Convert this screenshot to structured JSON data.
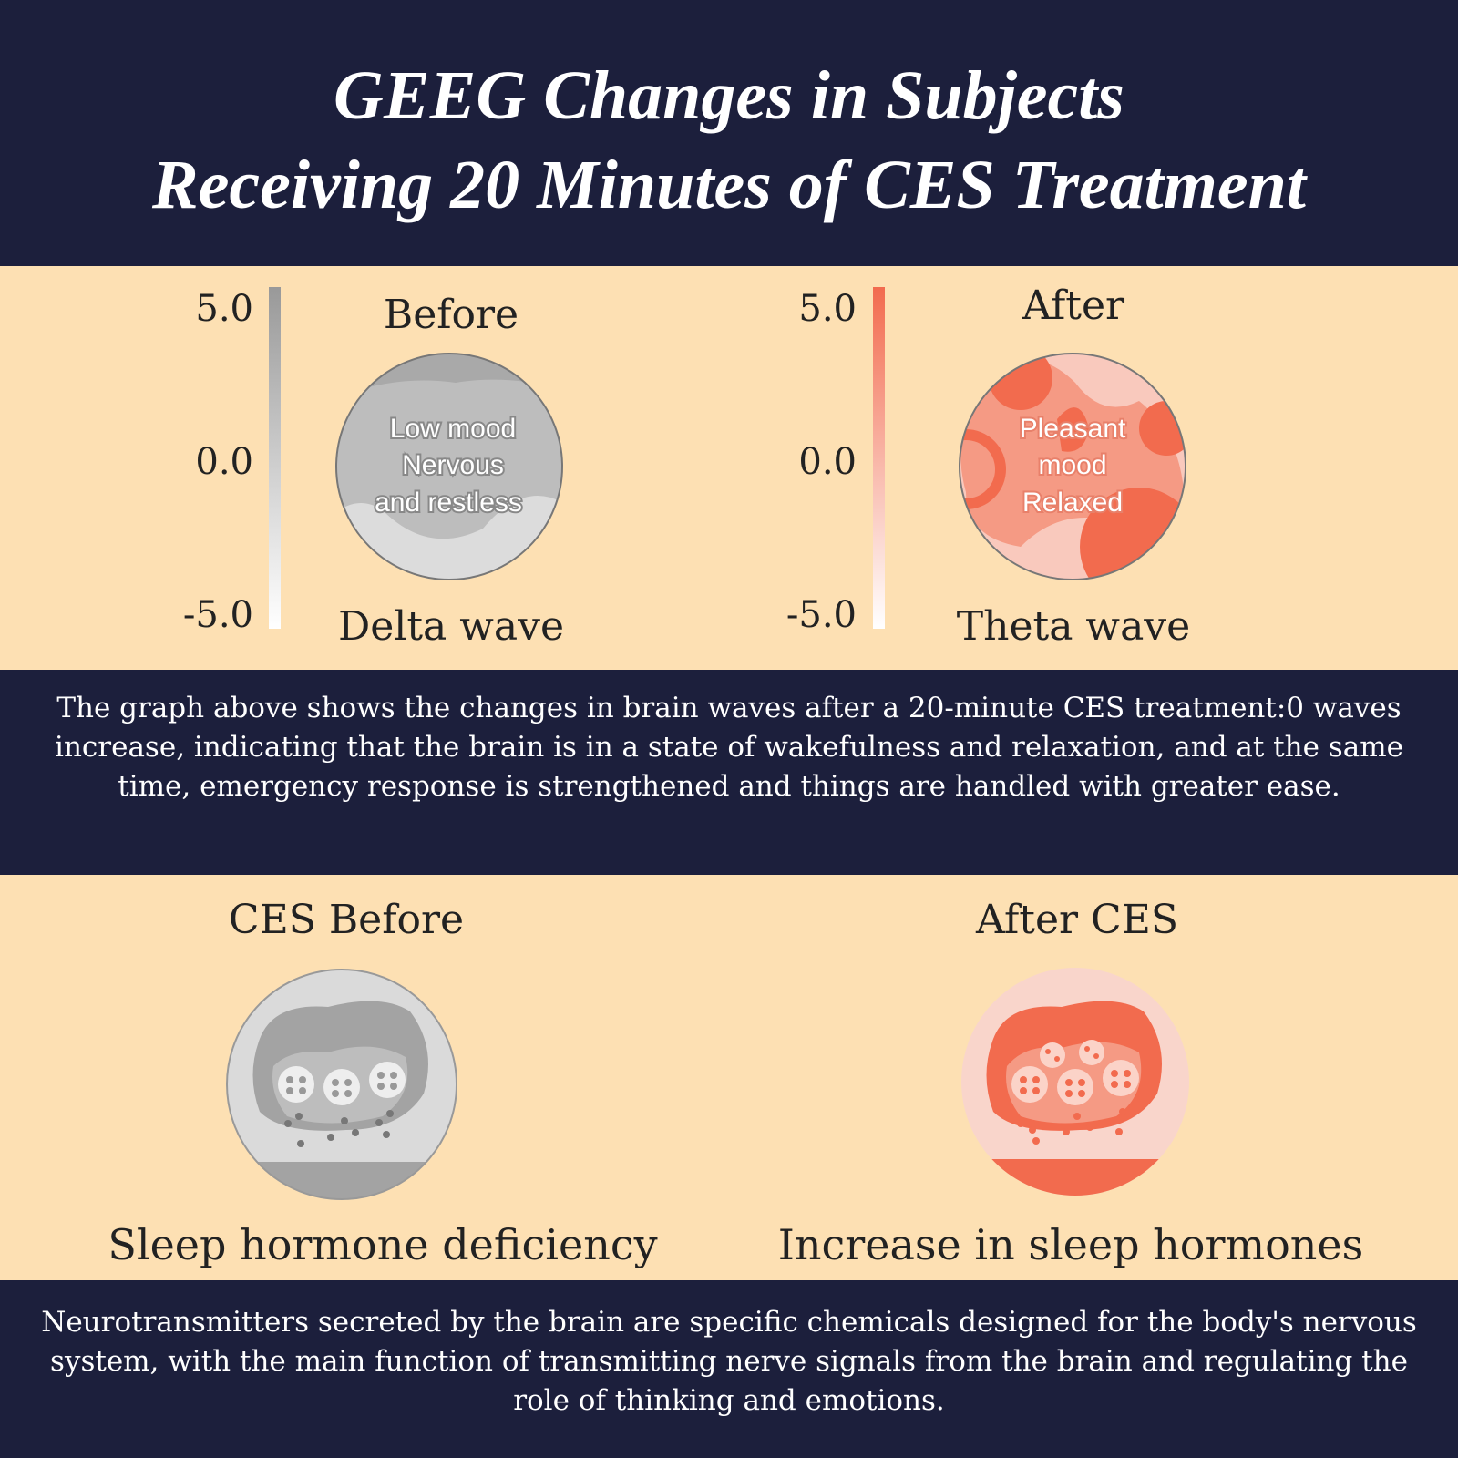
{
  "header": {
    "title_lines": [
      "GEEG Changes in Subjects",
      "Receiving 20 Minutes of CES Treatment"
    ]
  },
  "eeg": {
    "panels": [
      {
        "scale_labels": [
          "5.0",
          "0.0",
          "-5.0"
        ],
        "title": "Before",
        "circle_text": [
          "Low mood",
          "Nervous",
          "and restless"
        ],
        "caption": "Delta wave"
      },
      {
        "scale_labels": [
          "5.0",
          "0.0",
          "-5.0"
        ],
        "title": "After",
        "circle_text": [
          "Pleasant",
          "mood",
          "Relaxed"
        ],
        "caption": "Theta wave"
      }
    ],
    "description": "The graph above shows the changes in brain waves after a 20-minute CES treatment:0 waves increase, indicating that the brain is in a state of wakefulness and relaxation, and at the same time, emergency response is strengthened and things are handled with greater ease."
  },
  "hormones": {
    "panels": [
      {
        "title": "CES Before",
        "caption": "Sleep hormone deficiency"
      },
      {
        "title": "After CES",
        "caption": "Increase in sleep hormones"
      }
    ],
    "description": "Neurotransmitters secreted by the brain are specific chemicals designed for the body's nervous system, with the main function of transmitting nerve signals from the brain and regulating the role of thinking and emotions."
  }
}
